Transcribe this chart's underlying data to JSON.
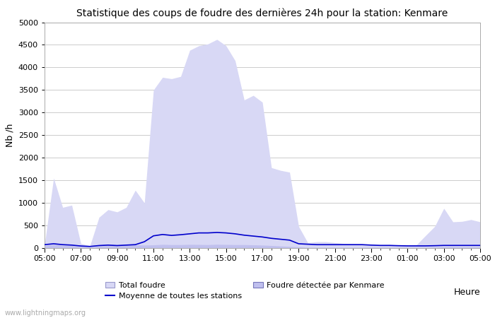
{
  "title": "Statistique des coups de foudre des dernières 24h pour la station: Kenmare",
  "xlabel": "Heure",
  "ylabel": "Nb /h",
  "ylim": [
    0,
    5000
  ],
  "yticks": [
    0,
    500,
    1000,
    1500,
    2000,
    2500,
    3000,
    3500,
    4000,
    4500,
    5000
  ],
  "x_labels": [
    "05:00",
    "07:00",
    "09:00",
    "11:00",
    "13:00",
    "15:00",
    "17:00",
    "19:00",
    "21:00",
    "23:00",
    "01:00",
    "03:00",
    "05:00"
  ],
  "watermark": "www.lightningmaps.org",
  "bg_color": "#ffffff",
  "plot_bg_color": "#ffffff",
  "grid_color": "#cccccc",
  "fill_total_color": "#d8d8f5",
  "fill_kenmare_color": "#c0c0ee",
  "line_color": "#0000cc",
  "x_numeric": [
    5,
    5.5,
    6,
    6.5,
    7,
    7.5,
    8,
    8.5,
    9,
    9.5,
    10,
    10.5,
    11,
    11.5,
    12,
    12.5,
    13,
    13.5,
    14,
    14.5,
    15,
    15.5,
    16,
    16.5,
    17,
    17.5,
    18,
    18.5,
    19,
    19.5,
    20,
    20.5,
    21,
    21.5,
    22,
    22.5,
    23,
    23.5,
    24,
    24.5,
    25,
    25.5,
    26,
    26.5,
    27,
    27.5,
    28,
    28.5,
    29
  ],
  "total_foudre": [
    80,
    1550,
    900,
    950,
    100,
    50,
    680,
    850,
    800,
    900,
    1280,
    1000,
    3500,
    3780,
    3750,
    3800,
    4380,
    4480,
    4520,
    4620,
    4480,
    4150,
    3280,
    3380,
    3230,
    1780,
    1720,
    1680,
    480,
    120,
    140,
    140,
    120,
    100,
    95,
    90,
    75,
    65,
    75,
    65,
    65,
    75,
    280,
    480,
    880,
    580,
    590,
    630,
    580
  ],
  "kenmare_foudre": [
    50,
    80,
    60,
    55,
    25,
    15,
    45,
    55,
    55,
    65,
    70,
    65,
    70,
    80,
    75,
    75,
    80,
    78,
    75,
    82,
    78,
    75,
    75,
    70,
    65,
    55,
    45,
    35,
    25,
    15,
    15,
    15,
    15,
    15,
    15,
    15,
    15,
    15,
    15,
    15,
    15,
    15,
    15,
    20,
    25,
    25,
    22,
    22,
    22
  ],
  "moyenne": [
    75,
    95,
    75,
    65,
    45,
    35,
    55,
    65,
    55,
    65,
    75,
    140,
    270,
    300,
    280,
    295,
    315,
    335,
    335,
    345,
    335,
    315,
    285,
    265,
    245,
    215,
    195,
    175,
    95,
    85,
    75,
    75,
    75,
    75,
    75,
    75,
    65,
    58,
    58,
    52,
    48,
    48,
    48,
    52,
    58,
    58,
    58,
    58,
    58
  ]
}
